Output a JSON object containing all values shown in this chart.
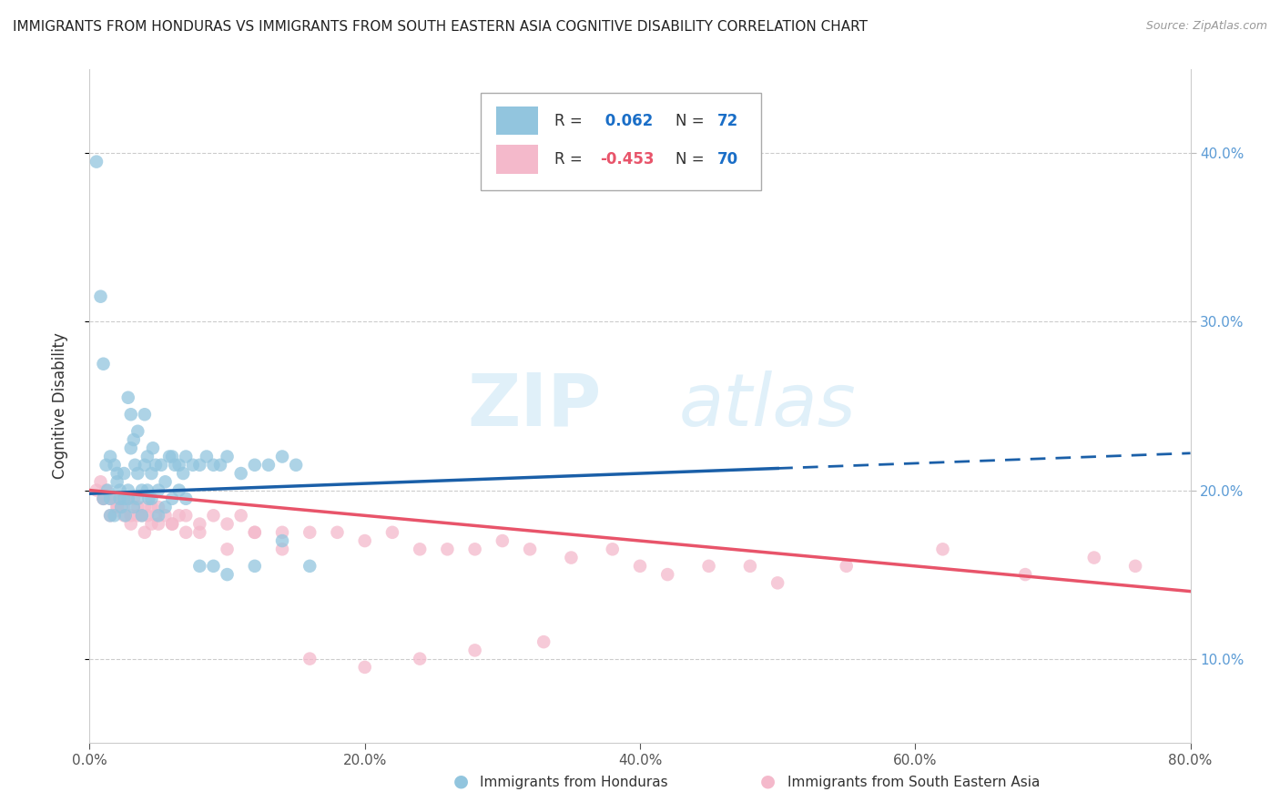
{
  "title": "IMMIGRANTS FROM HONDURAS VS IMMIGRANTS FROM SOUTH EASTERN ASIA COGNITIVE DISABILITY CORRELATION CHART",
  "source": "Source: ZipAtlas.com",
  "ylabel": "Cognitive Disability",
  "watermark_zip": "ZIP",
  "watermark_atlas": "atlas",
  "blue_color": "#92c5de",
  "pink_color": "#f4b9cb",
  "blue_line_color": "#1a5fa8",
  "pink_line_color": "#e8546a",
  "r_value_color": "#1a6ec7",
  "n_value_color": "#1a6ec7",
  "xlim": [
    0.0,
    0.8
  ],
  "ylim": [
    0.05,
    0.45
  ],
  "yticks": [
    0.1,
    0.2,
    0.3,
    0.4
  ],
  "ytick_labels": [
    "10.0%",
    "20.0%",
    "30.0%",
    "40.0%"
  ],
  "xticks": [
    0.0,
    0.2,
    0.4,
    0.6,
    0.8
  ],
  "xtick_labels": [
    "0.0%",
    "20.0%",
    "40.0%",
    "60.0%",
    "80.0%"
  ],
  "honduras_x": [
    0.005,
    0.008,
    0.01,
    0.012,
    0.013,
    0.015,
    0.015,
    0.018,
    0.02,
    0.02,
    0.022,
    0.023,
    0.025,
    0.026,
    0.028,
    0.028,
    0.03,
    0.03,
    0.032,
    0.033,
    0.035,
    0.035,
    0.038,
    0.04,
    0.04,
    0.042,
    0.043,
    0.045,
    0.046,
    0.048,
    0.05,
    0.052,
    0.055,
    0.058,
    0.06,
    0.062,
    0.065,
    0.068,
    0.07,
    0.075,
    0.08,
    0.085,
    0.09,
    0.095,
    0.1,
    0.11,
    0.12,
    0.13,
    0.14,
    0.15,
    0.01,
    0.015,
    0.018,
    0.022,
    0.025,
    0.028,
    0.032,
    0.035,
    0.038,
    0.042,
    0.045,
    0.05,
    0.055,
    0.06,
    0.065,
    0.07,
    0.08,
    0.09,
    0.1,
    0.12,
    0.14,
    0.16
  ],
  "honduras_y": [
    0.395,
    0.315,
    0.275,
    0.215,
    0.2,
    0.195,
    0.22,
    0.215,
    0.21,
    0.205,
    0.195,
    0.19,
    0.21,
    0.185,
    0.2,
    0.255,
    0.245,
    0.225,
    0.23,
    0.215,
    0.235,
    0.21,
    0.2,
    0.245,
    0.215,
    0.22,
    0.195,
    0.21,
    0.225,
    0.215,
    0.2,
    0.215,
    0.205,
    0.22,
    0.22,
    0.215,
    0.215,
    0.21,
    0.22,
    0.215,
    0.215,
    0.22,
    0.215,
    0.215,
    0.22,
    0.21,
    0.215,
    0.215,
    0.22,
    0.215,
    0.195,
    0.185,
    0.185,
    0.2,
    0.195,
    0.195,
    0.19,
    0.195,
    0.185,
    0.2,
    0.195,
    0.185,
    0.19,
    0.195,
    0.2,
    0.195,
    0.155,
    0.155,
    0.15,
    0.155,
    0.17,
    0.155
  ],
  "sea_x": [
    0.005,
    0.008,
    0.01,
    0.012,
    0.015,
    0.018,
    0.02,
    0.022,
    0.025,
    0.028,
    0.03,
    0.032,
    0.035,
    0.038,
    0.04,
    0.042,
    0.045,
    0.048,
    0.05,
    0.055,
    0.06,
    0.065,
    0.07,
    0.08,
    0.09,
    0.1,
    0.11,
    0.12,
    0.14,
    0.16,
    0.18,
    0.2,
    0.22,
    0.24,
    0.26,
    0.28,
    0.3,
    0.32,
    0.35,
    0.38,
    0.4,
    0.42,
    0.45,
    0.48,
    0.5,
    0.55,
    0.62,
    0.68,
    0.73,
    0.76,
    0.01,
    0.015,
    0.02,
    0.025,
    0.03,
    0.035,
    0.04,
    0.045,
    0.05,
    0.06,
    0.07,
    0.08,
    0.1,
    0.12,
    0.14,
    0.16,
    0.2,
    0.24,
    0.28,
    0.33
  ],
  "sea_y": [
    0.2,
    0.205,
    0.195,
    0.2,
    0.195,
    0.195,
    0.19,
    0.195,
    0.19,
    0.195,
    0.185,
    0.195,
    0.19,
    0.185,
    0.19,
    0.185,
    0.19,
    0.185,
    0.19,
    0.185,
    0.18,
    0.185,
    0.185,
    0.18,
    0.185,
    0.18,
    0.185,
    0.175,
    0.175,
    0.175,
    0.175,
    0.17,
    0.175,
    0.165,
    0.165,
    0.165,
    0.17,
    0.165,
    0.16,
    0.165,
    0.155,
    0.15,
    0.155,
    0.155,
    0.145,
    0.155,
    0.165,
    0.15,
    0.16,
    0.155,
    0.195,
    0.185,
    0.19,
    0.185,
    0.18,
    0.185,
    0.175,
    0.18,
    0.18,
    0.18,
    0.175,
    0.175,
    0.165,
    0.175,
    0.165,
    0.1,
    0.095,
    0.1,
    0.105,
    0.11
  ],
  "blue_line_x0": 0.0,
  "blue_line_x_solid_end": 0.5,
  "blue_line_x1": 0.8,
  "blue_line_y0": 0.198,
  "blue_line_y_solid_end": 0.213,
  "blue_line_y1": 0.222,
  "pink_line_x0": 0.0,
  "pink_line_x1": 0.8,
  "pink_line_y0": 0.2,
  "pink_line_y1": 0.14
}
